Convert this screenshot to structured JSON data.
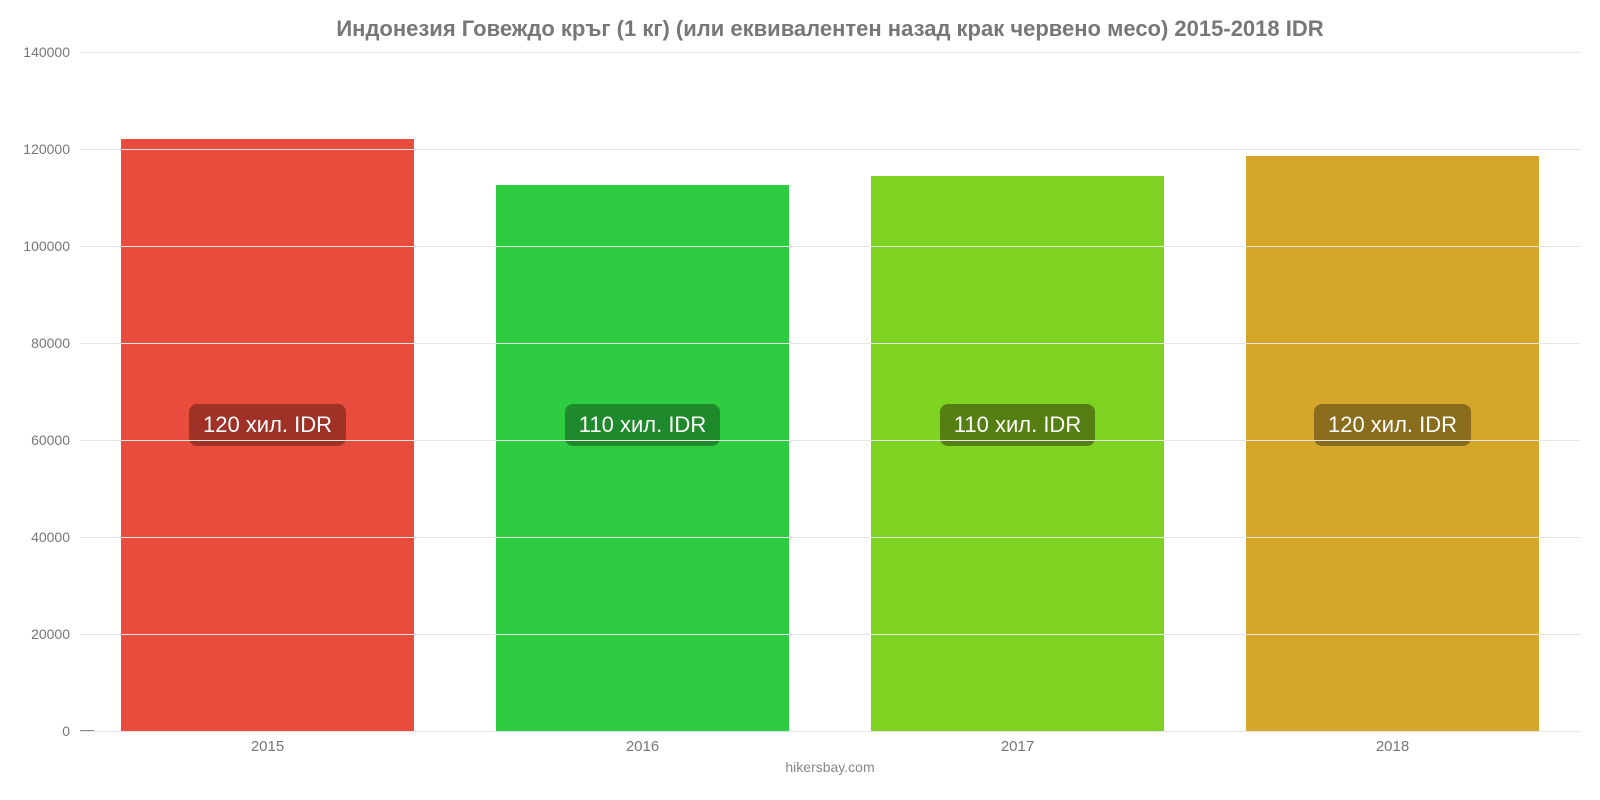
{
  "chart": {
    "type": "bar",
    "title": "Индонезия Говеждо кръг (1 кг) (или еквивалентен назад крак червено месо) 2015-2018 IDR",
    "title_fontsize": 22,
    "title_color": "#777777",
    "background_color": "#ffffff",
    "grid_color": "#e6e6e6",
    "axis_color": "#cccccc",
    "tick_color": "#777777",
    "ylim_min": 0,
    "ylim_max": 140000,
    "ytick_step": 20000,
    "yticks": [
      {
        "v": 0,
        "label": "0"
      },
      {
        "v": 20000,
        "label": "20000"
      },
      {
        "v": 40000,
        "label": "40000"
      },
      {
        "v": 60000,
        "label": "60000"
      },
      {
        "v": 80000,
        "label": "80000"
      },
      {
        "v": 100000,
        "label": "100000"
      },
      {
        "v": 120000,
        "label": "120000"
      },
      {
        "v": 140000,
        "label": "140000"
      }
    ],
    "bar_width_pct": 78,
    "categories": [
      "2015",
      "2016",
      "2017",
      "2018"
    ],
    "label_fontsize": 22,
    "label_text_color": "#ffffff",
    "label_vcenter_value": 63000,
    "series": [
      {
        "value": 122000,
        "label": "120 хил. IDR",
        "fill": "#e74c3c",
        "label_bg": "#a03126"
      },
      {
        "value": 112500,
        "label": "110 хил. IDR",
        "fill": "#2ecc40",
        "label_bg": "#1f8a2b"
      },
      {
        "value": 114500,
        "label": "110 хил. IDR",
        "fill": "#7ed321",
        "label_bg": "#567f13"
      },
      {
        "value": 118500,
        "label": "120 хил. IDR",
        "fill": "#d4a62a",
        "label_bg": "#8a6d1c"
      }
    ],
    "credit": "hikersbay.com",
    "credit_color": "#888888"
  }
}
